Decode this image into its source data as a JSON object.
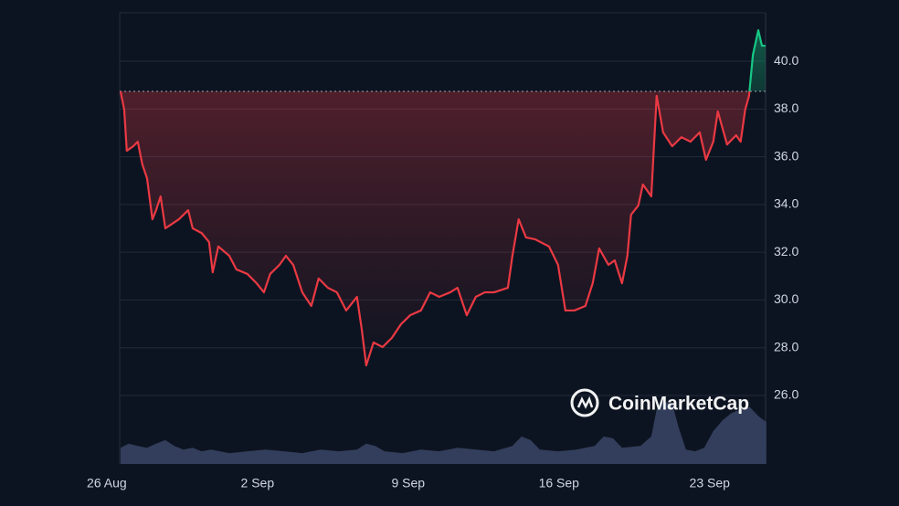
{
  "chart_data": {
    "type": "line",
    "watermark": "CoinMarketCap",
    "xlim": [
      0.6,
      30.6
    ],
    "xticks": [
      {
        "value": 0,
        "label": "26 Aug"
      },
      {
        "value": 7,
        "label": "2 Sep"
      },
      {
        "value": 14,
        "label": "9 Sep"
      },
      {
        "value": 21,
        "label": "16 Sep"
      },
      {
        "value": 28,
        "label": "23 Sep"
      }
    ],
    "ylim": [
      23.13,
      42.03
    ],
    "yticks": [
      {
        "value": 26,
        "label": "26.0"
      },
      {
        "value": 28,
        "label": "28.0"
      },
      {
        "value": 30,
        "label": "30.0"
      },
      {
        "value": 32,
        "label": "32.0"
      },
      {
        "value": 34,
        "label": "34.0"
      },
      {
        "value": 36,
        "label": "36.0"
      },
      {
        "value": 38,
        "label": "38.0"
      },
      {
        "value": 40,
        "label": "40.0"
      }
    ],
    "y2lim": [
      0,
      100
    ],
    "grid": true,
    "up_color": "#16c784",
    "down_color": "#ea3943",
    "series": [
      {
        "color": "#ea3943",
        "x": [
          0.64,
          0.81,
          0.93,
          1.23,
          1.44,
          1.65,
          1.87,
          2.12,
          2.29,
          2.5,
          2.72,
          3.05,
          3.35,
          3.78,
          3.99,
          4.41,
          4.75,
          4.92,
          5.18,
          5.69,
          6.02,
          6.53,
          6.96,
          7.3,
          7.59,
          8.02,
          8.32,
          8.66,
          9.08,
          9.5,
          9.84,
          10.27,
          10.69,
          11.12,
          11.62,
          11.84,
          12.05,
          12.39,
          12.81,
          13.24,
          13.66,
          14.09,
          14.59,
          15.02,
          15.44,
          15.95,
          16.29,
          16.72,
          17.14,
          17.56,
          17.99,
          18.63,
          18.84,
          19.13,
          19.47,
          19.9,
          20.54,
          20.96,
          21.3,
          21.72,
          22.23,
          22.57,
          22.87,
          23.3,
          23.59,
          23.93,
          24.18,
          24.35,
          24.69,
          24.9,
          25.29,
          25.54,
          25.84,
          26.26,
          26.69,
          27.11,
          27.54,
          27.83,
          28.17,
          28.38,
          28.81,
          29.23,
          29.44,
          29.65,
          29.83,
          30.01,
          30.26,
          30.43,
          30.59
        ],
        "values": [
          38.74,
          37.97,
          36.25,
          36.44,
          36.63,
          35.68,
          35.1,
          33.38,
          33.76,
          34.34,
          33.0,
          33.2,
          33.38,
          33.76,
          33.0,
          32.8,
          32.43,
          31.16,
          32.24,
          31.85,
          31.28,
          31.09,
          30.7,
          30.32,
          31.09,
          31.47,
          31.85,
          31.47,
          30.32,
          29.75,
          30.9,
          30.51,
          30.32,
          29.56,
          30.13,
          28.79,
          27.26,
          28.22,
          28.03,
          28.41,
          28.98,
          29.36,
          29.56,
          30.32,
          30.13,
          30.32,
          30.51,
          29.36,
          30.13,
          30.32,
          30.32,
          30.51,
          31.85,
          33.38,
          32.62,
          32.54,
          32.24,
          31.47,
          29.56,
          29.56,
          29.75,
          30.7,
          32.16,
          31.47,
          31.66,
          30.7,
          31.85,
          33.57,
          33.96,
          34.84,
          34.34,
          38.55,
          37.02,
          36.44,
          36.82,
          36.63,
          37.02,
          35.87,
          36.63,
          37.9,
          36.51,
          36.9,
          36.63,
          37.97,
          38.55,
          40.27,
          41.3,
          40.65,
          40.65
        ]
      },
      {
        "color": "#3a4565",
        "axis": "y2",
        "x": [
          0.64,
          1.02,
          1.44,
          1.87,
          2.29,
          2.72,
          3.14,
          3.56,
          3.99,
          4.41,
          4.84,
          5.69,
          6.53,
          7.38,
          8.23,
          9.08,
          9.93,
          10.77,
          11.62,
          12.05,
          12.47,
          12.9,
          13.75,
          14.59,
          15.44,
          16.29,
          17.14,
          17.99,
          18.84,
          19.26,
          19.69,
          20.11,
          20.96,
          21.81,
          22.66,
          23.08,
          23.51,
          23.93,
          24.78,
          25.29,
          25.54,
          25.84,
          26.26,
          26.56,
          26.9,
          27.32,
          27.75,
          28.17,
          28.6,
          29.02,
          29.44,
          29.87,
          30.29,
          30.63
        ],
        "values": [
          3.6,
          4.5,
          4.0,
          3.6,
          4.5,
          5.3,
          4.0,
          3.2,
          3.6,
          2.8,
          3.2,
          2.4,
          2.8,
          3.2,
          2.8,
          2.4,
          3.2,
          2.8,
          3.2,
          4.5,
          4.0,
          2.8,
          2.4,
          3.2,
          2.8,
          3.6,
          3.2,
          2.8,
          4.0,
          6.1,
          5.3,
          3.2,
          2.8,
          3.2,
          4.0,
          6.1,
          5.7,
          3.6,
          4.0,
          6.1,
          12.1,
          13.8,
          13.4,
          8.1,
          3.2,
          2.8,
          3.6,
          7.3,
          9.7,
          11.3,
          12.1,
          12.6,
          10.5,
          9.3
        ]
      }
    ]
  }
}
